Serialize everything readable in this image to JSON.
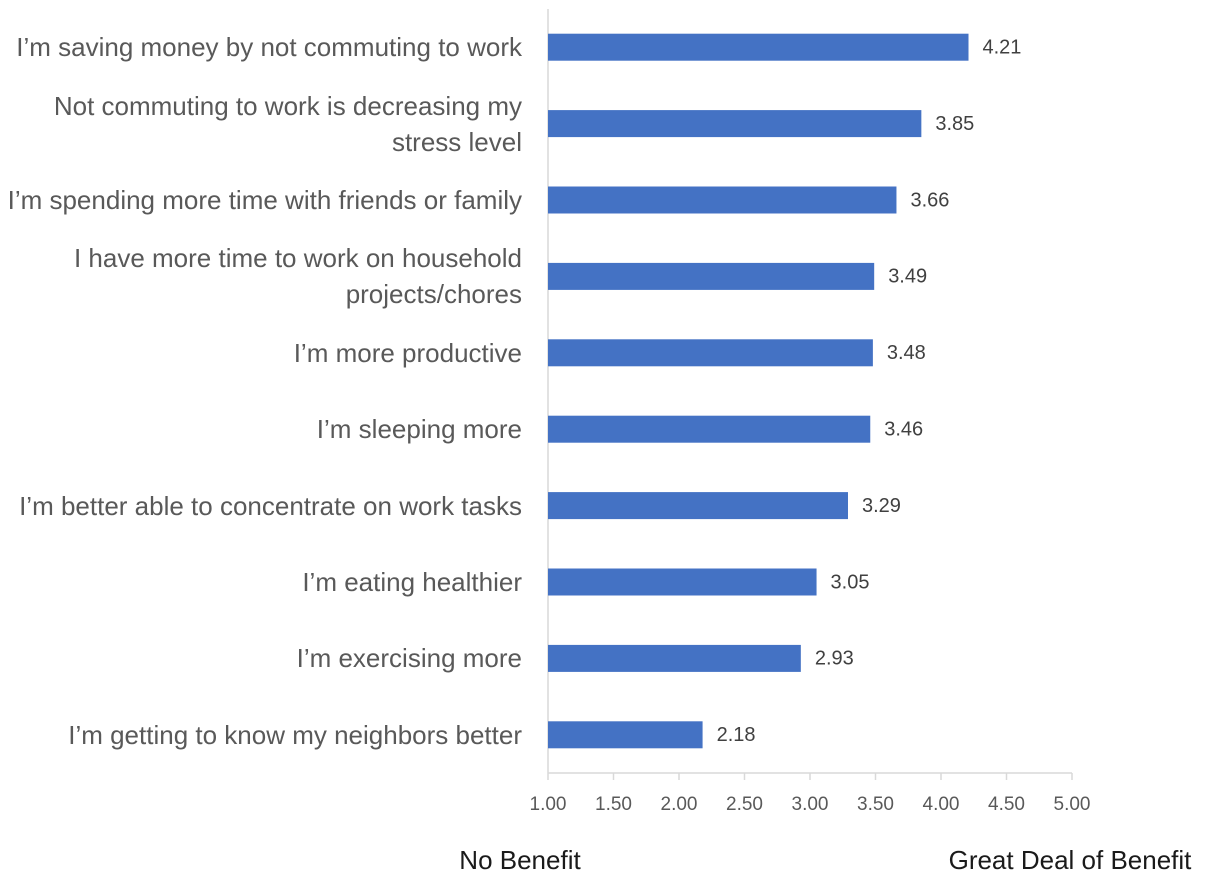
{
  "chart_data": {
    "type": "bar",
    "orientation": "horizontal",
    "categories": [
      "I’m saving money by not commuting to work",
      "Not commuting to work is decreasing my stress level",
      "I’m spending more time with friends or family",
      "I have more time to work on household projects/chores",
      "I’m more productive",
      "I’m sleeping more",
      "I’m better able to concentrate on work tasks",
      "I’m eating healthier",
      "I’m exercising more",
      "I’m getting to know my neighbors better"
    ],
    "values": [
      4.21,
      3.85,
      3.66,
      3.49,
      3.48,
      3.46,
      3.29,
      3.05,
      2.93,
      2.18
    ],
    "color": "#4472c4",
    "xlim": [
      1,
      5
    ],
    "xticks": [
      {
        "value": 1,
        "label": "1.00"
      },
      {
        "value": 1.5,
        "label": "1.50"
      },
      {
        "value": 2,
        "label": "2.00"
      },
      {
        "value": 2.5,
        "label": "2.50"
      },
      {
        "value": 3,
        "label": "3.00"
      },
      {
        "value": 3.5,
        "label": "3.50"
      },
      {
        "value": 4,
        "label": "4.00"
      },
      {
        "value": 4.5,
        "label": "4.50"
      },
      {
        "value": 5,
        "label": "5.00"
      }
    ],
    "xlabel_left": "No Benefit",
    "xlabel_right": "Great Deal of Benefit",
    "grid": false
  }
}
